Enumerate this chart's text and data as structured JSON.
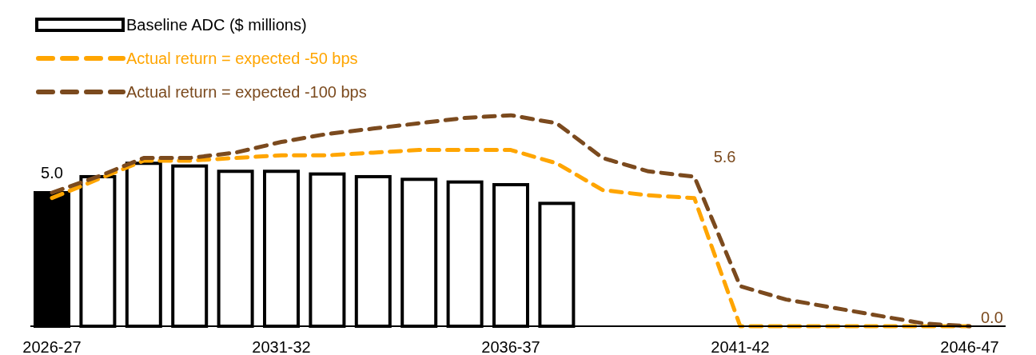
{
  "chart_data": {
    "type": "bar",
    "categories": [
      "2026-27",
      null,
      null,
      null,
      null,
      "2031-32",
      null,
      null,
      null,
      null,
      "2036-37",
      null,
      null,
      null,
      null,
      "2041-42",
      null,
      null,
      null,
      null,
      "2046-47"
    ],
    "series": [
      {
        "name": "Baseline ADC ($ millions)",
        "color": "#000000",
        "colors": [
          "#000000",
          "#ffffff",
          "#ffffff",
          "#ffffff",
          "#ffffff",
          "#ffffff",
          "#ffffff",
          "#ffffff",
          "#ffffff",
          "#ffffff",
          "#ffffff",
          "#ffffff",
          null,
          null,
          null,
          null,
          null,
          null,
          null,
          null,
          null
        ],
        "values": [
          5.0,
          5.6,
          6.1,
          6.0,
          5.8,
          5.8,
          5.7,
          5.6,
          5.5,
          5.4,
          5.3,
          4.6,
          null,
          null,
          null,
          null,
          null,
          null,
          null,
          null,
          null
        ],
        "value_labels": [
          "5.0",
          null,
          null,
          null,
          null,
          null,
          null,
          null,
          null,
          null,
          null,
          null,
          null,
          null,
          null,
          null,
          null,
          null,
          null,
          null,
          null
        ]
      },
      {
        "type": "line",
        "name": "Actual return = expected -50 bps",
        "color": "#ffa500",
        "line_style": "dashed",
        "values": [
          4.8,
          5.5,
          6.2,
          6.2,
          6.3,
          6.4,
          6.4,
          6.5,
          6.6,
          6.6,
          6.6,
          6.1,
          5.1,
          4.9,
          4.8,
          0,
          0,
          0,
          0,
          0,
          0
        ]
      },
      {
        "type": "line",
        "name": "Actual return = expected -100 bps",
        "color": "#7b4a1e",
        "line_style": "dashed",
        "values": [
          5.0,
          5.6,
          6.3,
          6.3,
          6.5,
          6.9,
          7.2,
          7.4,
          7.6,
          7.8,
          7.9,
          7.6,
          6.3,
          5.8,
          5.6,
          1.5,
          1.0,
          0.7,
          0.4,
          0.1,
          0.0
        ],
        "value_labels": [
          null,
          null,
          null,
          null,
          null,
          null,
          null,
          null,
          null,
          null,
          null,
          null,
          null,
          null,
          "5.6",
          null,
          null,
          null,
          null,
          null,
          "0.0"
        ]
      }
    ],
    "legend": "top left"
  }
}
